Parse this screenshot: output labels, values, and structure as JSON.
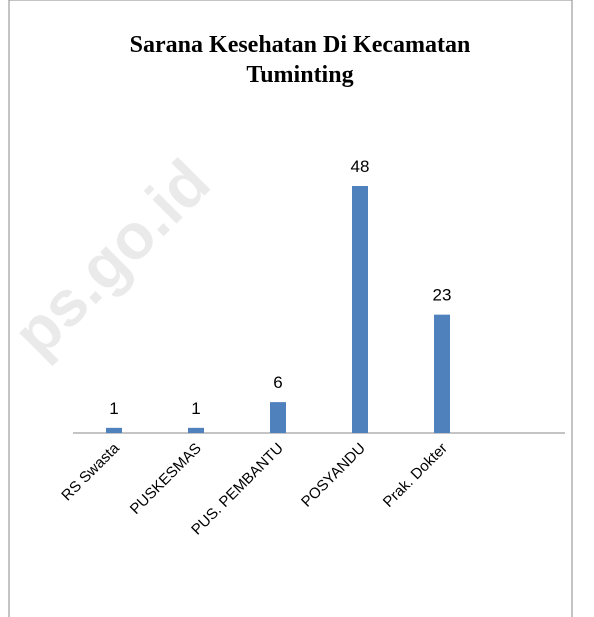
{
  "chart_data": {
    "type": "bar",
    "title": "Sarana Kesehatan Di Kecamatan Tuminting",
    "categories": [
      "RS Swasta",
      "PUSKESMAS",
      "PUS. PEMBANTU",
      "POSYANDU",
      "Prak. Dokter",
      null
    ],
    "values": [
      1,
      1,
      6,
      48,
      23,
      null
    ],
    "color": "#4f81bd",
    "watermark": "ps.go.id"
  }
}
